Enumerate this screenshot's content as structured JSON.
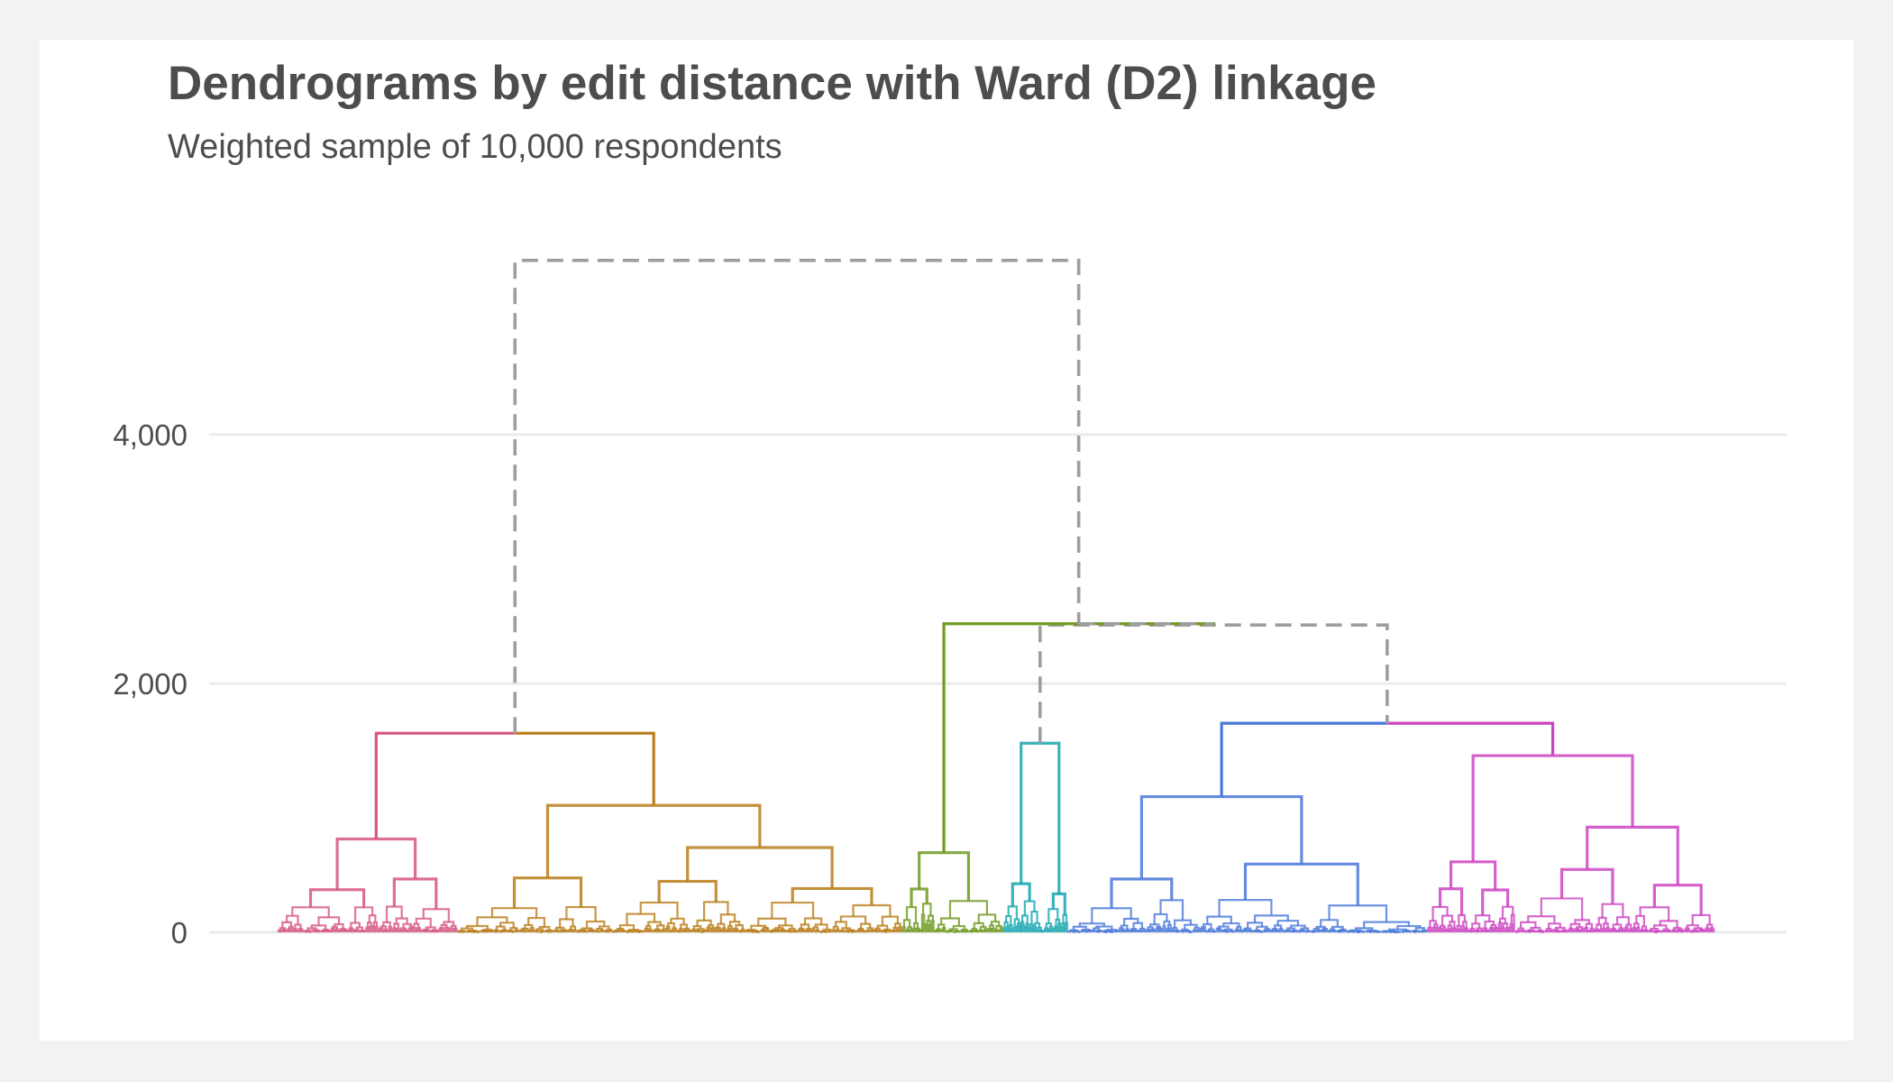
{
  "chart_data": {
    "type": "dendrogram",
    "title": "Dendrograms by edit distance with Ward (D2) linkage",
    "subtitle": "Weighted sample of 10,000 respondents",
    "xlabel": "",
    "ylabel": "",
    "ylim": [
      -500,
      5500
    ],
    "y_ticks": [
      0,
      2000,
      4000
    ],
    "y_tick_labels": [
      "0",
      "2,000",
      "4,000"
    ],
    "grid": "horizontal",
    "legend": "none",
    "n_leaves": 1000,
    "root": {
      "height": 5400,
      "children": [
        "left_group",
        "right_group"
      ]
    },
    "left_group": {
      "height": 1600,
      "children": [
        "cluster_1",
        "cluster_2"
      ]
    },
    "right_group": {
      "height": 2480,
      "children": [
        "cluster_3",
        "right_subgroup"
      ]
    },
    "right_subgroup": {
      "height": 2470,
      "children": [
        "cluster_4",
        "blue_magenta"
      ]
    },
    "blue_magenta": {
      "height": 1680,
      "children": [
        "cluster_5",
        "cluster_6"
      ]
    },
    "clusters": [
      {
        "id": "cluster_1",
        "color": "#d6577f",
        "leaf_range": [
          0,
          125
        ],
        "height": 1600,
        "top_merge": 750
      },
      {
        "id": "cluster_2",
        "color": "#b97d19",
        "leaf_range": [
          125,
          435
        ],
        "height": 1600,
        "top_merge": 1020
      },
      {
        "id": "cluster_3",
        "color": "#6f9a1f",
        "leaf_range": [
          435,
          505
        ],
        "height": 2480,
        "top_merge": 640
      },
      {
        "id": "cluster_4",
        "color": "#17a6b0",
        "leaf_range": [
          505,
          550
        ],
        "height": 2470,
        "top_merge": 1520
      },
      {
        "id": "cluster_5",
        "color": "#4a78d9",
        "leaf_range": [
          550,
          800
        ],
        "height": 1680,
        "top_merge": 1090
      },
      {
        "id": "cluster_6",
        "color": "#cc44c2",
        "leaf_range": [
          800,
          1000
        ],
        "height": 1680,
        "top_merge": 1420
      }
    ],
    "upper_link_style": {
      "color": "#9e9e9e",
      "dash": "dashed"
    },
    "grid_color": "#ebebeb",
    "text_color": "#4d4d4d"
  }
}
